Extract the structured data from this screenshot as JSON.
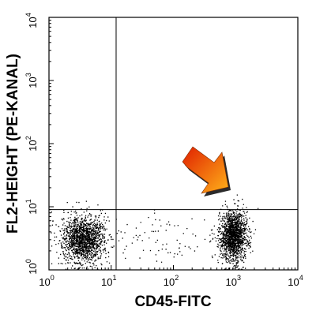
{
  "chart_data": {
    "type": "scatter",
    "title": "",
    "xlabel": "CD45-FITC",
    "ylabel": "FL2-HEIGHT (PE-KANAL)",
    "xscale": "log",
    "yscale": "log",
    "xlim": [
      1,
      10000
    ],
    "ylim": [
      1,
      10000
    ],
    "x_ticks": [
      {
        "base": "10",
        "exp": "0"
      },
      {
        "base": "10",
        "exp": "1"
      },
      {
        "base": "10",
        "exp": "2"
      },
      {
        "base": "10",
        "exp": "3"
      },
      {
        "base": "10",
        "exp": "4"
      }
    ],
    "y_ticks": [
      {
        "base": "10",
        "exp": "0"
      },
      {
        "base": "10",
        "exp": "1"
      },
      {
        "base": "10",
        "exp": "2"
      },
      {
        "base": "10",
        "exp": "3"
      },
      {
        "base": "10",
        "exp": "4"
      }
    ],
    "quadrant_gates": {
      "x": 12,
      "y": 9
    },
    "populations": [
      {
        "x_center": 3.5,
        "y_center": 3.2,
        "x_log_spread": 0.17,
        "y_log_spread": 0.19,
        "events": 1500
      },
      {
        "x_center": 900,
        "y_center": 3.5,
        "x_log_spread": 0.11,
        "y_log_spread": 0.2,
        "events": 1500
      },
      {
        "x_center": 60,
        "y_center": 3,
        "x_log_spread": 0.55,
        "y_log_spread": 0.2,
        "events": 90
      }
    ],
    "annotation": {
      "type": "arrow",
      "points_to": {
        "x": 1100,
        "y": 12
      }
    },
    "grid": false,
    "legend": "none",
    "point_color": "#000000",
    "arrow_colors": [
      "#e01f00",
      "#ffb31a"
    ]
  }
}
